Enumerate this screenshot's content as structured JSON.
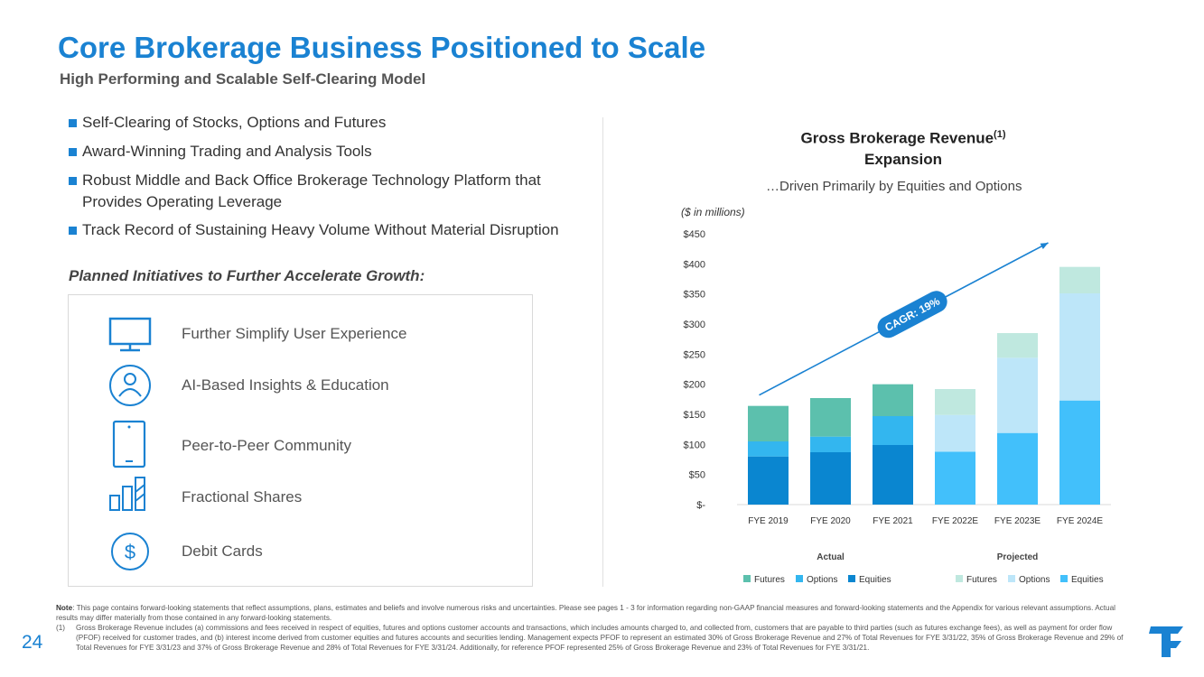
{
  "header": {
    "title": "Core Brokerage Business Positioned to Scale",
    "subtitle": "High Performing and Scalable Self-Clearing Model"
  },
  "bullets": [
    "Self-Clearing of Stocks, Options and Futures",
    "Award-Winning Trading and Analysis Tools",
    "Robust Middle and Back Office Brokerage Technology Platform that Provides Operating Leverage",
    "Track Record of Sustaining Heavy Volume Without Material Disruption"
  ],
  "initiatives": {
    "heading": "Planned Initiatives to Further Accelerate Growth:",
    "items": [
      {
        "label": "Further Simplify User Experience",
        "icon": "monitor-icon"
      },
      {
        "label": "AI-Based Insights & Education",
        "icon": "user-profile-icon"
      },
      {
        "label": "Peer-to-Peer Community",
        "icon": "tablet-icon"
      },
      {
        "label": "Fractional Shares",
        "icon": "fractional-chart-icon"
      },
      {
        "label": "Debit Cards",
        "icon": "dollar-icon"
      }
    ]
  },
  "chart_header": {
    "title": "Gross Brokerage Revenue",
    "title_sup": "(1)",
    "title_line2": "Expansion",
    "subtitle": "…Driven Primarily by Equities and Options",
    "units": "($ in millions)"
  },
  "chart_data": {
    "type": "bar",
    "stacked": true,
    "categories": [
      "FYE 2019",
      "FYE 2020",
      "FYE 2021",
      "FYE 2022E",
      "FYE 2023E",
      "FYE 2024E"
    ],
    "projected_from_index": 3,
    "series": [
      {
        "name": "Equities",
        "values": [
          80,
          87,
          99,
          88,
          119,
          173
        ]
      },
      {
        "name": "Options",
        "values": [
          25,
          26,
          48,
          61,
          125,
          178
        ]
      },
      {
        "name": "Futures",
        "values": [
          59,
          64,
          53,
          43,
          41,
          44
        ]
      }
    ],
    "ylim": [
      0,
      450
    ],
    "yticks": [
      0,
      50,
      100,
      150,
      200,
      250,
      300,
      350,
      400,
      450
    ],
    "ytick_labels": [
      "$-",
      "$50",
      "$100",
      "$150",
      "$200",
      "$250",
      "$300",
      "$350",
      "$400",
      "$450"
    ],
    "group_labels": [
      "Actual",
      "Projected"
    ],
    "legend": [
      {
        "label": "Futures",
        "color": "#5cc0ad"
      },
      {
        "label": "Options",
        "color": "#33b6ef"
      },
      {
        "label": "Equities",
        "color": "#0a86d0"
      },
      {
        "label": "Futures",
        "color": "#bfe8df"
      },
      {
        "label": "Options",
        "color": "#bde6f9"
      },
      {
        "label": "Equities",
        "color": "#42c0fb"
      }
    ],
    "colors_actual": {
      "Equities": "#0a86d0",
      "Options": "#33b6ef",
      "Futures": "#5cc0ad"
    },
    "colors_projected": {
      "Equities": "#42c0fb",
      "Options": "#bde6f9",
      "Futures": "#bfe8df"
    },
    "annotation": "CAGR: 19%"
  },
  "footer": {
    "note_label": "Note",
    "note": ": This page contains forward-looking statements that reflect assumptions, plans, estimates and beliefs and involve numerous risks and uncertainties. Please see pages 1 - 3 for information regarding non-GAAP financial measures and forward-looking statements and the Appendix for various relevant assumptions. Actual results may differ materially from those contained in any forward-looking statements.",
    "footnote_num": "(1)",
    "footnote": "Gross Brokerage Revenue includes (a) commissions and fees received in respect of equities, futures and options customer accounts and transactions, which includes amounts charged to, and collected from, customers that are payable to third parties (such as futures exchange fees), as well as payment for order flow (PFOF) received for customer trades, and (b) interest income derived from customer equities and futures accounts and securities lending. Management expects PFOF to represent an estimated 30% of Gross Brokerage Revenue and 27% of Total Revenues for FYE 3/31/22, 35% of Gross Brokerage Revenue and 29% of Total Revenues for FYE 3/31/23 and 37% of Gross Brokerage Revenue and 28% of Total Revenues for FYE 3/31/24. Additionally, for reference PFOF represented 25% of Gross Brokerage Revenue and 23% of Total Revenues for FYE 3/31/21.",
    "page_number": "24",
    "accent": "#1a82d2"
  }
}
